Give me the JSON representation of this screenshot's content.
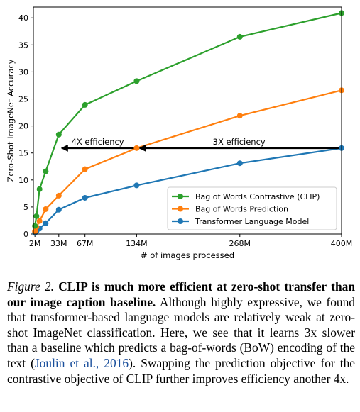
{
  "chart_data": {
    "type": "line",
    "xlabel": "# of images processed",
    "ylabel": "Zero-Shot ImageNet Accuracy",
    "xlim": [
      0,
      400
    ],
    "ylim": [
      0,
      42
    ],
    "x_ticks": [
      2,
      33,
      67,
      134,
      268,
      400
    ],
    "x_tick_labels": [
      "2M",
      "33M",
      "67M",
      "134M",
      "268M",
      "400M"
    ],
    "y_ticks": [
      0,
      5,
      10,
      15,
      20,
      25,
      30,
      35,
      40
    ],
    "y_tick_labels": [
      "0",
      "5",
      "10",
      "15",
      "20",
      "25",
      "30",
      "35",
      "40"
    ],
    "legend_position": "lower-right",
    "series": [
      {
        "name": "Bag of Words Contrastive (CLIP)",
        "color": "#2ca02c",
        "x": [
          2,
          4,
          8,
          16,
          33,
          67,
          134,
          268,
          400
        ],
        "y": [
          1.5,
          3.3,
          8.3,
          11.6,
          18.4,
          23.9,
          28.3,
          36.5,
          40.9
        ]
      },
      {
        "name": "Bag of Words Prediction",
        "color": "#ff7f0e",
        "x": [
          2,
          4,
          8,
          16,
          33,
          67,
          134,
          268,
          400
        ],
        "y": [
          0.5,
          1.3,
          2.4,
          4.6,
          7.1,
          12.0,
          15.9,
          21.9,
          26.6
        ]
      },
      {
        "name": "Transformer Language Model",
        "color": "#1f77b4",
        "x": [
          2,
          4,
          8,
          16,
          33,
          67,
          134,
          268,
          400
        ],
        "y": [
          0.2,
          0.5,
          1.0,
          2.0,
          4.5,
          6.7,
          9.0,
          13.1,
          15.9
        ]
      }
    ],
    "annotations": [
      {
        "text": "4X efficiency",
        "arrow_from_x": 134,
        "arrow_to_x": 33,
        "y": 15.9
      },
      {
        "text": "3X efficiency",
        "arrow_from_x": 400,
        "arrow_to_x": 134,
        "y": 15.9
      }
    ]
  },
  "caption": {
    "label": "Figure 2.",
    "bold": "CLIP is much more efficient at zero-shot transfer than our image caption baseline.",
    "text1": "Although highly expressive, we found that transformer-based language models are relatively weak at zero-shot ImageNet classification. Here, we see that it learns 3x slower than a baseline which predicts a bag-of-words (BoW) encoding of the text (",
    "cite": "Joulin et al., 2016",
    "text2": "). Swapping the prediction objective for the contrastive objective of CLIP further improves efficiency another 4x."
  }
}
